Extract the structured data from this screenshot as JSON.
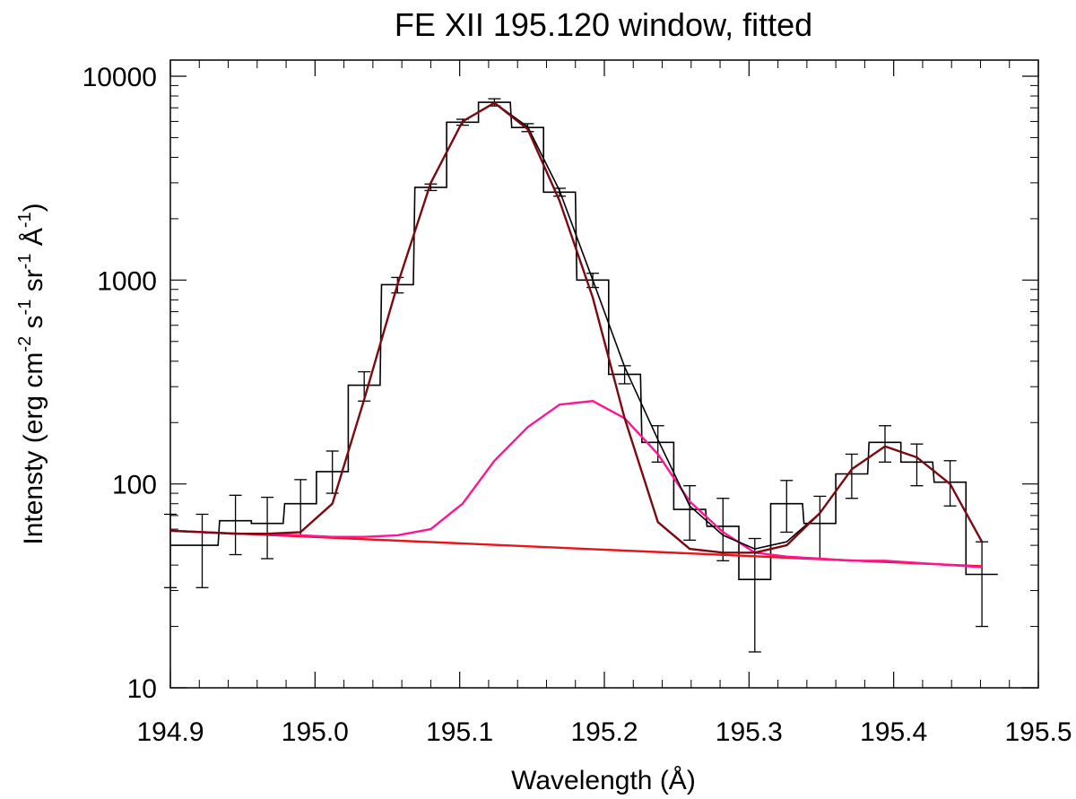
{
  "chart_data": {
    "type": "line",
    "title": "FE XII 195.120 window, fitted",
    "xlabel": "Wavelength (Å)",
    "ylabel": "Intensty (erg cm-2 s-1 sr-1 Å-1)",
    "ylabel_parts": {
      "a": "Intensty (erg cm",
      "b": "-2",
      "c": " s",
      "d": "-1",
      "e": " sr",
      "f": "-1",
      "g": " Å",
      "h": "-1",
      "i": ")"
    },
    "xlim": [
      194.9,
      195.5
    ],
    "ylim": [
      10,
      12000
    ],
    "yscale": "log",
    "grid": false,
    "x_ticks": [
      "194.9",
      "195.0",
      "195.1",
      "195.2",
      "195.3",
      "195.4",
      "195.5"
    ],
    "y_ticks": [
      "10",
      "100",
      "1000",
      "10000"
    ],
    "observed": {
      "color": "#000000",
      "x": [
        194.9,
        194.922,
        194.945,
        194.967,
        194.99,
        195.012,
        195.034,
        195.057,
        195.08,
        195.102,
        195.124,
        195.147,
        195.169,
        195.192,
        195.214,
        195.237,
        195.259,
        195.282,
        195.304,
        195.326,
        195.349,
        195.371,
        195.394,
        195.416,
        195.439,
        195.461
      ],
      "y": [
        50,
        50,
        66,
        64,
        80,
        115,
        305,
        950,
        2850,
        5950,
        7450,
        5600,
        2700,
        1000,
        345,
        160,
        75,
        62,
        34,
        80,
        64,
        112,
        160,
        128,
        102,
        36
      ],
      "err_lo": [
        31,
        31,
        45,
        43,
        56,
        90,
        255,
        865,
        2750,
        5750,
        7150,
        5350,
        2580,
        920,
        310,
        128,
        53,
        42,
        15,
        58,
        43,
        85,
        128,
        98,
        78,
        20
      ],
      "err_hi": [
        71,
        71,
        88,
        86,
        105,
        145,
        355,
        1030,
        2960,
        6150,
        7750,
        5850,
        2820,
        1080,
        380,
        193,
        98,
        85,
        54,
        104,
        87,
        140,
        193,
        157,
        130,
        52
      ]
    },
    "series": [
      {
        "name": "",
        "color": "#000000",
        "x": [
          194.9,
          194.922,
          194.945,
          194.967,
          194.99,
          195.012,
          195.034,
          195.057,
          195.08,
          195.102,
          195.124,
          195.147,
          195.169,
          195.192,
          195.214,
          195.237,
          195.259,
          195.282,
          195.304,
          195.326,
          195.349,
          195.371,
          195.394,
          195.416,
          195.439,
          195.461
        ],
        "y": [
          59,
          58,
          57,
          57,
          58,
          80,
          260,
          950,
          3000,
          6000,
          7400,
          5650,
          2750,
          1000,
          375,
          165,
          78,
          56,
          48,
          52,
          72,
          118,
          153,
          135,
          100,
          52
        ]
      },
      {
        "name": "",
        "color": "#7a0a10",
        "x": [
          194.9,
          194.922,
          194.945,
          194.967,
          194.99,
          195.012,
          195.034,
          195.057,
          195.08,
          195.102,
          195.124,
          195.147,
          195.169,
          195.192,
          195.214,
          195.237,
          195.259,
          195.282,
          195.304,
          195.326,
          195.349,
          195.371,
          195.394,
          195.416,
          195.439,
          195.461
        ],
        "y": [
          59,
          58,
          57,
          57,
          58,
          80,
          260,
          950,
          3000,
          6000,
          7400,
          5500,
          2450,
          820,
          210,
          65,
          48,
          46,
          46,
          50,
          72,
          118,
          153,
          135,
          100,
          52
        ]
      },
      {
        "name": "",
        "color": "#ff1493",
        "x": [
          194.9,
          194.922,
          194.945,
          194.967,
          194.99,
          195.012,
          195.034,
          195.057,
          195.08,
          195.102,
          195.124,
          195.147,
          195.169,
          195.192,
          195.214,
          195.237,
          195.259,
          195.282,
          195.304,
          195.326,
          195.349,
          195.371,
          195.394,
          195.416,
          195.439,
          195.461
        ],
        "y": [
          59,
          58,
          57,
          57,
          56,
          55,
          55,
          56,
          60,
          80,
          130,
          190,
          245,
          255,
          210,
          140,
          82,
          58,
          46,
          44,
          43,
          42,
          42,
          41,
          40,
          39
        ]
      },
      {
        "name": "",
        "color": "#e8141a",
        "x": [
          194.9,
          195.461
        ],
        "y": [
          59,
          39.5
        ]
      }
    ]
  }
}
